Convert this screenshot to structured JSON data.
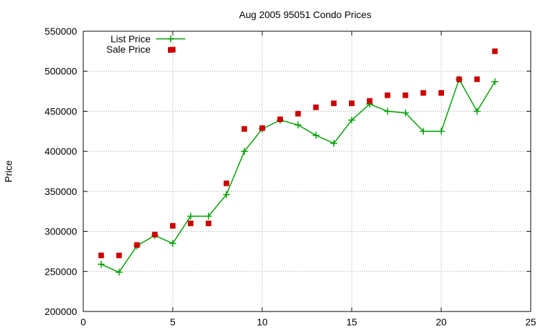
{
  "chart_data": {
    "type": "line",
    "title": "Aug 2005 95051 Condo Prices",
    "xlabel": "",
    "ylabel": "Price",
    "xlim": [
      0,
      25
    ],
    "ylim": [
      200000,
      550000
    ],
    "xticks": [
      0,
      5,
      10,
      15,
      20,
      25
    ],
    "yticks": [
      200000,
      250000,
      300000,
      350000,
      400000,
      450000,
      500000,
      550000
    ],
    "grid": true,
    "legend_position": "top-left",
    "series": [
      {
        "name": "List Price",
        "style": "line-with-plus-markers",
        "color": "#00a000",
        "x": [
          1,
          2,
          3,
          4,
          5,
          6,
          7,
          8,
          9,
          10,
          11,
          12,
          13,
          14,
          15,
          16,
          17,
          18,
          19,
          20,
          21,
          22,
          23
        ],
        "y": [
          259000,
          249000,
          282000,
          295000,
          285000,
          319000,
          319000,
          346000,
          400000,
          428000,
          439000,
          433000,
          420000,
          410000,
          439000,
          459000,
          450000,
          448000,
          425000,
          425000,
          490000,
          450000,
          487000
        ]
      },
      {
        "name": "Sale Price",
        "style": "square-points",
        "color": "#cc0000",
        "x": [
          1,
          2,
          3,
          4,
          5,
          5,
          6,
          7,
          8,
          9,
          10,
          11,
          12,
          13,
          14,
          15,
          16,
          17,
          18,
          19,
          20,
          21,
          22,
          23
        ],
        "y": [
          270000,
          270000,
          283000,
          296000,
          307000,
          527000,
          310000,
          310000,
          360000,
          428000,
          429000,
          440000,
          447000,
          455000,
          460000,
          460000,
          463000,
          470000,
          470000,
          473000,
          473000,
          490000,
          490000,
          525000
        ]
      }
    ]
  }
}
